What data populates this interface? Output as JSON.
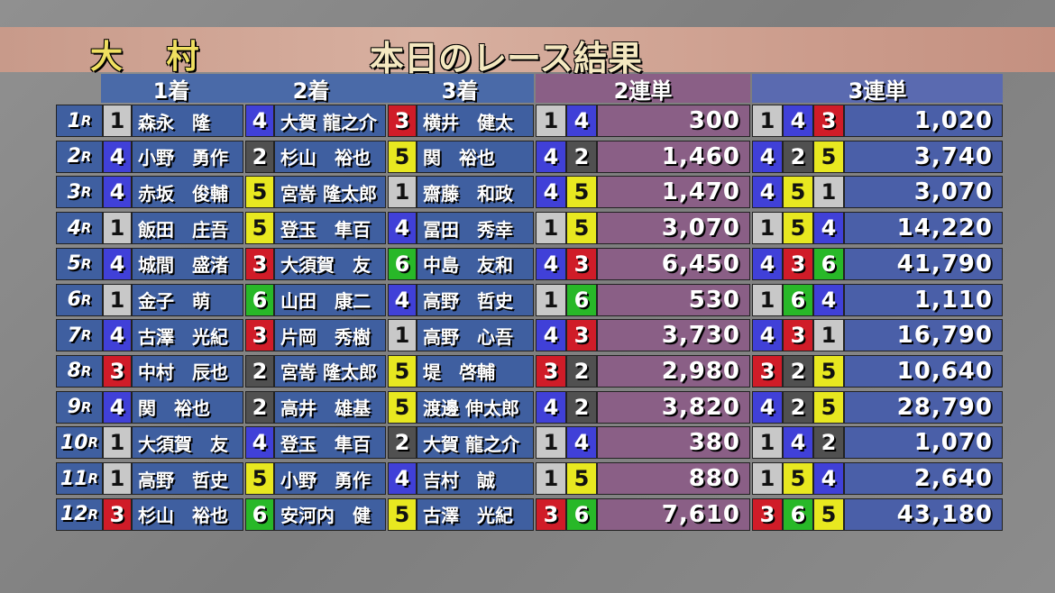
{
  "header": {
    "venue": "大 村",
    "title": "本日のレース結果"
  },
  "columns": {
    "first": "1着",
    "second": "2着",
    "third": "3着",
    "exacta": "2連単",
    "trifecta": "3連単"
  },
  "boat_colors": {
    "1": "#c8c8c8",
    "2": "#505050",
    "3": "#d01c28",
    "4": "#4040d8",
    "5": "#e8e820",
    "6": "#28b828"
  },
  "rows": [
    {
      "race": "1",
      "r": "R",
      "b1": "1",
      "n1": "森永　隆",
      "b2": "4",
      "n2": "大賀 龍之介",
      "b3": "3",
      "n3": "横井　健太",
      "ex1": "1",
      "ex2": "4",
      "exv": "300",
      "t1": "1",
      "t2": "4",
      "t3": "3",
      "tv": "1,020"
    },
    {
      "race": "2",
      "r": "R",
      "b1": "4",
      "n1": "小野　勇作",
      "b2": "2",
      "n2": "杉山　裕也",
      "b3": "5",
      "n3": "関　裕也",
      "ex1": "4",
      "ex2": "2",
      "exv": "1,460",
      "t1": "4",
      "t2": "2",
      "t3": "5",
      "tv": "3,740"
    },
    {
      "race": "3",
      "r": "R",
      "b1": "4",
      "n1": "赤坂　俊輔",
      "b2": "5",
      "n2": "宮嵜 隆太郎",
      "b3": "1",
      "n3": "齋藤　和政",
      "ex1": "4",
      "ex2": "5",
      "exv": "1,470",
      "t1": "4",
      "t2": "5",
      "t3": "1",
      "tv": "3,070"
    },
    {
      "race": "4",
      "r": "R",
      "b1": "1",
      "n1": "飯田　庄吾",
      "b2": "5",
      "n2": "登玉　隼百",
      "b3": "4",
      "n3": "冨田　秀幸",
      "ex1": "1",
      "ex2": "5",
      "exv": "3,070",
      "t1": "1",
      "t2": "5",
      "t3": "4",
      "tv": "14,220"
    },
    {
      "race": "5",
      "r": "R",
      "b1": "4",
      "n1": "城間　盛渚",
      "b2": "3",
      "n2": "大須賀　友",
      "b3": "6",
      "n3": "中島　友和",
      "ex1": "4",
      "ex2": "3",
      "exv": "6,450",
      "t1": "4",
      "t2": "3",
      "t3": "6",
      "tv": "41,790"
    },
    {
      "race": "6",
      "r": "R",
      "b1": "1",
      "n1": "金子　萌",
      "b2": "6",
      "n2": "山田　康二",
      "b3": "4",
      "n3": "高野　哲史",
      "ex1": "1",
      "ex2": "6",
      "exv": "530",
      "t1": "1",
      "t2": "6",
      "t3": "4",
      "tv": "1,110"
    },
    {
      "race": "7",
      "r": "R",
      "b1": "4",
      "n1": "古澤　光紀",
      "b2": "3",
      "n2": "片岡　秀樹",
      "b3": "1",
      "n3": "高野　心吾",
      "ex1": "4",
      "ex2": "3",
      "exv": "3,730",
      "t1": "4",
      "t2": "3",
      "t3": "1",
      "tv": "16,790"
    },
    {
      "race": "8",
      "r": "R",
      "b1": "3",
      "n1": "中村　辰也",
      "b2": "2",
      "n2": "宮嵜 隆太郎",
      "b3": "5",
      "n3": "堤　啓輔",
      "ex1": "3",
      "ex2": "2",
      "exv": "2,980",
      "t1": "3",
      "t2": "2",
      "t3": "5",
      "tv": "10,640"
    },
    {
      "race": "9",
      "r": "R",
      "b1": "4",
      "n1": "関　裕也",
      "b2": "2",
      "n2": "高井　雄基",
      "b3": "5",
      "n3": "渡邊 伸太郎",
      "ex1": "4",
      "ex2": "2",
      "exv": "3,820",
      "t1": "4",
      "t2": "2",
      "t3": "5",
      "tv": "28,790"
    },
    {
      "race": "10",
      "r": "R",
      "b1": "1",
      "n1": "大須賀　友",
      "b2": "4",
      "n2": "登玉　隼百",
      "b3": "2",
      "n3": "大賀 龍之介",
      "ex1": "1",
      "ex2": "4",
      "exv": "380",
      "t1": "1",
      "t2": "4",
      "t3": "2",
      "tv": "1,070"
    },
    {
      "race": "11",
      "r": "R",
      "b1": "1",
      "n1": "高野　哲史",
      "b2": "5",
      "n2": "小野　勇作",
      "b3": "4",
      "n3": "吉村　誠",
      "ex1": "1",
      "ex2": "5",
      "exv": "880",
      "t1": "1",
      "t2": "5",
      "t3": "4",
      "tv": "2,640"
    },
    {
      "race": "12",
      "r": "R",
      "b1": "3",
      "n1": "杉山　裕也",
      "b2": "6",
      "n2": "安河内　健",
      "b3": "5",
      "n3": "古澤　光紀",
      "ex1": "3",
      "ex2": "6",
      "exv": "7,610",
      "t1": "3",
      "t2": "6",
      "t3": "5",
      "tv": "43,180"
    }
  ]
}
